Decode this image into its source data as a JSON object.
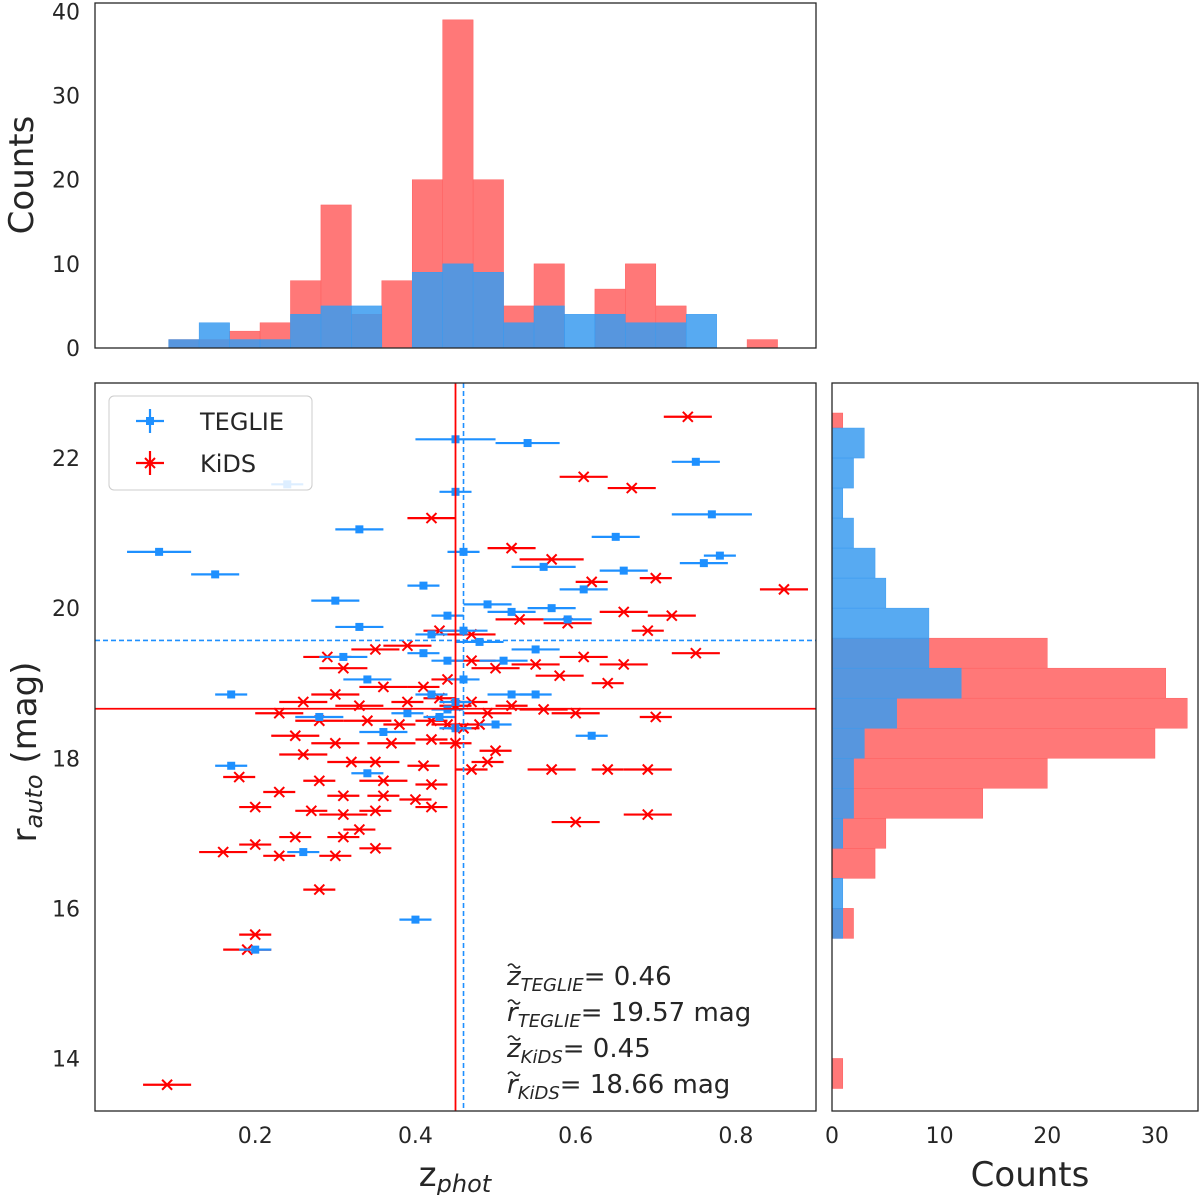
{
  "colors": {
    "teglie": "#1E90FF",
    "kids": "#FF0000",
    "teglie_fill": "#3A9BF0",
    "kids_fill": "#FF6060",
    "overlap_fill": "#5B7DD6"
  },
  "chart_data": [
    {
      "panel": "top-histogram",
      "type": "bar",
      "ylabel": "Counts",
      "xlim": [
        0.0,
        0.9
      ],
      "ylim": [
        0,
        41
      ],
      "yticks": [
        "0",
        "10",
        "20",
        "30",
        "40"
      ],
      "bin_edges": [
        0.092,
        0.13,
        0.168,
        0.206,
        0.244,
        0.282,
        0.32,
        0.358,
        0.396,
        0.434,
        0.472,
        0.51,
        0.548,
        0.586,
        0.624,
        0.662,
        0.7,
        0.738,
        0.776,
        0.814,
        0.852,
        0.89
      ],
      "series": [
        {
          "name": "KiDS",
          "values": [
            1,
            1,
            2,
            3,
            8,
            17,
            4,
            8,
            20,
            39,
            20,
            5,
            10,
            0,
            7,
            10,
            5,
            0,
            0,
            1,
            0
          ]
        },
        {
          "name": "TEGLIE",
          "values": [
            1,
            3,
            1,
            1,
            4,
            5,
            5,
            0,
            9,
            10,
            9,
            3,
            5,
            4,
            4,
            3,
            3,
            4,
            0,
            0,
            0
          ]
        }
      ]
    },
    {
      "panel": "scatter",
      "type": "scatter",
      "xlabel": "z",
      "xlabel_sub": "phot",
      "ylabel": "r",
      "ylabel_sub": "auto",
      "ylabel_unit": " (mag)",
      "xlim": [
        0.0,
        0.9
      ],
      "ylim": [
        13.3,
        23.0
      ],
      "xticks": [
        "0.2",
        "0.4",
        "0.6",
        "0.8"
      ],
      "yticks": [
        "14",
        "16",
        "18",
        "20",
        "22"
      ],
      "legend": [
        {
          "name": "TEGLIE",
          "marker": "square"
        },
        {
          "name": "KiDS",
          "marker": "x"
        }
      ],
      "medians": {
        "teglie_z": 0.46,
        "teglie_r": 19.57,
        "kids_z": 0.45,
        "kids_r": 18.66
      },
      "annotations": [
        {
          "sym": "z",
          "sub": "TEGLIE",
          "value": "= 0.46"
        },
        {
          "sym": "r",
          "sub": "TEGLIE",
          "value": "= 19.57 mag"
        },
        {
          "sym": "z",
          "sub": "KiDS",
          "value": "= 0.45"
        },
        {
          "sym": "r",
          "sub": "KiDS",
          "value": "= 18.66 mag"
        }
      ],
      "series": [
        {
          "name": "TEGLIE",
          "points": [
            [
              0.45,
              22.25,
              0.05
            ],
            [
              0.54,
              22.2,
              0.04
            ],
            [
              0.75,
              21.95,
              0.03
            ],
            [
              0.24,
              21.65,
              0.02
            ],
            [
              0.45,
              21.55,
              0.02
            ],
            [
              0.77,
              21.25,
              0.05
            ],
            [
              0.33,
              21.05,
              0.03
            ],
            [
              0.65,
              20.95,
              0.03
            ],
            [
              0.08,
              20.75,
              0.04
            ],
            [
              0.46,
              20.75,
              0.02
            ],
            [
              0.78,
              20.7,
              0.02
            ],
            [
              0.76,
              20.6,
              0.03
            ],
            [
              0.56,
              20.55,
              0.04
            ],
            [
              0.66,
              20.5,
              0.03
            ],
            [
              0.15,
              20.45,
              0.03
            ],
            [
              0.41,
              20.3,
              0.02
            ],
            [
              0.61,
              20.25,
              0.03
            ],
            [
              0.3,
              20.1,
              0.03
            ],
            [
              0.49,
              20.05,
              0.03
            ],
            [
              0.44,
              19.9,
              0.02
            ],
            [
              0.57,
              20.0,
              0.03
            ],
            [
              0.52,
              19.95,
              0.03
            ],
            [
              0.59,
              19.85,
              0.03
            ],
            [
              0.46,
              19.7,
              0.03
            ],
            [
              0.33,
              19.75,
              0.03
            ],
            [
              0.42,
              19.65,
              0.02
            ],
            [
              0.48,
              19.55,
              0.03
            ],
            [
              0.55,
              19.45,
              0.03
            ],
            [
              0.41,
              19.4,
              0.02
            ],
            [
              0.31,
              19.35,
              0.03
            ],
            [
              0.44,
              19.3,
              0.02
            ],
            [
              0.51,
              19.3,
              0.03
            ],
            [
              0.34,
              19.05,
              0.03
            ],
            [
              0.46,
              19.05,
              0.02
            ],
            [
              0.17,
              18.85,
              0.02
            ],
            [
              0.52,
              18.85,
              0.03
            ],
            [
              0.55,
              18.85,
              0.02
            ],
            [
              0.42,
              18.85,
              0.02
            ],
            [
              0.45,
              18.75,
              0.02
            ],
            [
              0.44,
              18.65,
              0.02
            ],
            [
              0.28,
              18.55,
              0.03
            ],
            [
              0.39,
              18.6,
              0.02
            ],
            [
              0.43,
              18.55,
              0.02
            ],
            [
              0.5,
              18.45,
              0.02
            ],
            [
              0.36,
              18.35,
              0.03
            ],
            [
              0.62,
              18.3,
              0.02
            ],
            [
              0.45,
              18.4,
              0.02
            ],
            [
              0.17,
              17.9,
              0.02
            ],
            [
              0.34,
              17.8,
              0.02
            ],
            [
              0.26,
              16.75,
              0.02
            ],
            [
              0.4,
              15.85,
              0.02
            ],
            [
              0.2,
              15.45,
              0.02
            ]
          ]
        },
        {
          "name": "KiDS",
          "points": [
            [
              0.74,
              22.55,
              0.03
            ],
            [
              0.61,
              21.75,
              0.03
            ],
            [
              0.67,
              21.6,
              0.03
            ],
            [
              0.42,
              21.2,
              0.03
            ],
            [
              0.52,
              20.8,
              0.03
            ],
            [
              0.57,
              20.65,
              0.04
            ],
            [
              0.7,
              20.4,
              0.02
            ],
            [
              0.86,
              20.25,
              0.03
            ],
            [
              0.62,
              20.35,
              0.02
            ],
            [
              0.66,
              19.95,
              0.03
            ],
            [
              0.72,
              19.9,
              0.03
            ],
            [
              0.59,
              19.8,
              0.03
            ],
            [
              0.69,
              19.7,
              0.02
            ],
            [
              0.53,
              19.85,
              0.03
            ],
            [
              0.47,
              19.65,
              0.03
            ],
            [
              0.43,
              19.7,
              0.02
            ],
            [
              0.39,
              19.5,
              0.03
            ],
            [
              0.35,
              19.45,
              0.03
            ],
            [
              0.29,
              19.35,
              0.03
            ],
            [
              0.31,
              19.2,
              0.03
            ],
            [
              0.47,
              19.3,
              0.03
            ],
            [
              0.5,
              19.2,
              0.03
            ],
            [
              0.55,
              19.25,
              0.03
            ],
            [
              0.61,
              19.35,
              0.03
            ],
            [
              0.66,
              19.25,
              0.03
            ],
            [
              0.75,
              19.4,
              0.03
            ],
            [
              0.58,
              19.1,
              0.03
            ],
            [
              0.64,
              19.0,
              0.02
            ],
            [
              0.44,
              19.05,
              0.02
            ],
            [
              0.41,
              18.95,
              0.02
            ],
            [
              0.36,
              18.95,
              0.03
            ],
            [
              0.3,
              18.85,
              0.03
            ],
            [
              0.26,
              18.75,
              0.03
            ],
            [
              0.33,
              18.7,
              0.03
            ],
            [
              0.39,
              18.75,
              0.02
            ],
            [
              0.43,
              18.8,
              0.02
            ],
            [
              0.45,
              18.7,
              0.02
            ],
            [
              0.47,
              18.75,
              0.02
            ],
            [
              0.49,
              18.6,
              0.03
            ],
            [
              0.52,
              18.7,
              0.02
            ],
            [
              0.56,
              18.65,
              0.03
            ],
            [
              0.6,
              18.6,
              0.03
            ],
            [
              0.7,
              18.55,
              0.02
            ],
            [
              0.23,
              18.6,
              0.03
            ],
            [
              0.28,
              18.5,
              0.03
            ],
            [
              0.34,
              18.5,
              0.03
            ],
            [
              0.38,
              18.45,
              0.02
            ],
            [
              0.42,
              18.5,
              0.02
            ],
            [
              0.44,
              18.45,
              0.02
            ],
            [
              0.46,
              18.4,
              0.02
            ],
            [
              0.48,
              18.45,
              0.02
            ],
            [
              0.25,
              18.3,
              0.03
            ],
            [
              0.3,
              18.2,
              0.03
            ],
            [
              0.37,
              18.2,
              0.03
            ],
            [
              0.42,
              18.25,
              0.02
            ],
            [
              0.45,
              18.2,
              0.02
            ],
            [
              0.5,
              18.1,
              0.02
            ],
            [
              0.26,
              18.05,
              0.03
            ],
            [
              0.32,
              17.95,
              0.03
            ],
            [
              0.35,
              17.95,
              0.03
            ],
            [
              0.41,
              17.9,
              0.02
            ],
            [
              0.47,
              17.85,
              0.02
            ],
            [
              0.49,
              17.95,
              0.02
            ],
            [
              0.57,
              17.85,
              0.03
            ],
            [
              0.64,
              17.85,
              0.02
            ],
            [
              0.69,
              17.85,
              0.03
            ],
            [
              0.18,
              17.75,
              0.02
            ],
            [
              0.28,
              17.7,
              0.02
            ],
            [
              0.36,
              17.7,
              0.03
            ],
            [
              0.42,
              17.65,
              0.02
            ],
            [
              0.23,
              17.55,
              0.02
            ],
            [
              0.31,
              17.5,
              0.02
            ],
            [
              0.36,
              17.5,
              0.02
            ],
            [
              0.4,
              17.45,
              0.02
            ],
            [
              0.2,
              17.35,
              0.02
            ],
            [
              0.27,
              17.3,
              0.02
            ],
            [
              0.31,
              17.25,
              0.03
            ],
            [
              0.35,
              17.3,
              0.02
            ],
            [
              0.42,
              17.35,
              0.02
            ],
            [
              0.33,
              17.05,
              0.02
            ],
            [
              0.31,
              16.95,
              0.02
            ],
            [
              0.25,
              16.95,
              0.02
            ],
            [
              0.2,
              16.85,
              0.02
            ],
            [
              0.35,
              16.8,
              0.02
            ],
            [
              0.16,
              16.75,
              0.03
            ],
            [
              0.3,
              16.7,
              0.02
            ],
            [
              0.23,
              16.7,
              0.02
            ],
            [
              0.6,
              17.15,
              0.03
            ],
            [
              0.69,
              17.25,
              0.03
            ],
            [
              0.28,
              16.25,
              0.02
            ],
            [
              0.2,
              15.65,
              0.02
            ],
            [
              0.19,
              15.45,
              0.03
            ],
            [
              0.09,
              13.65,
              0.03
            ]
          ]
        }
      ]
    },
    {
      "panel": "right-histogram",
      "type": "bar",
      "orientation": "horizontal",
      "xlabel": "Counts",
      "xlim": [
        0,
        34
      ],
      "xticks": [
        "0",
        "10",
        "20",
        "30"
      ],
      "bin_edges": [
        13.6,
        14.0,
        15.2,
        15.6,
        16.0,
        16.4,
        16.8,
        17.2,
        17.6,
        18.0,
        18.4,
        18.8,
        19.2,
        19.6,
        20.0,
        20.4,
        20.8,
        21.2,
        21.6,
        22.0,
        22.4,
        22.6
      ],
      "series": [
        {
          "name": "KiDS",
          "values": [
            1,
            0,
            0,
            2,
            0,
            4,
            5,
            14,
            20,
            30,
            33,
            31,
            20,
            0,
            0,
            0,
            0,
            0,
            0,
            0,
            1
          ]
        },
        {
          "name": "TEGLIE",
          "values": [
            0,
            0,
            0,
            1,
            1,
            0,
            1,
            2,
            2,
            3,
            6,
            12,
            9,
            9,
            5,
            4,
            2,
            1,
            2,
            3,
            0
          ]
        }
      ]
    }
  ]
}
